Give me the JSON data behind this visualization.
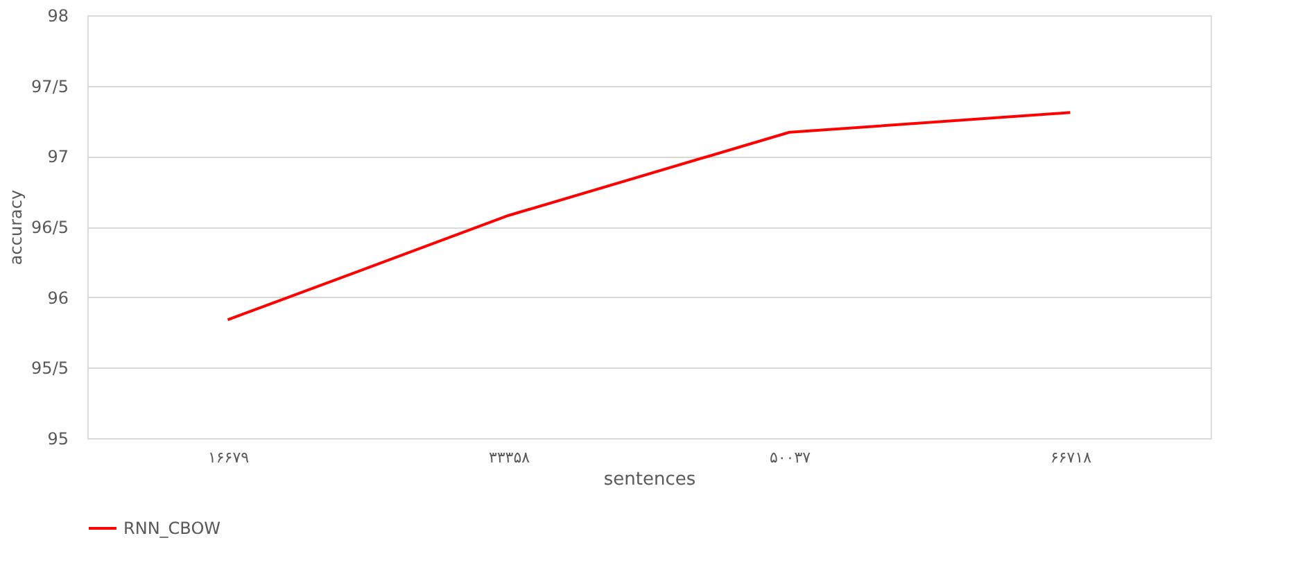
{
  "chart_data": {
    "type": "line",
    "xlabel": "sentences",
    "ylabel": "accuracy",
    "categories": [
      "۱۶۶۷۹",
      "۳۳۳۵۸",
      "۵۰۰۳۷",
      "۶۶۷۱۸"
    ],
    "series": [
      {
        "name": "RNN_CBOW",
        "color": "#ff0000",
        "values": [
          95.84,
          96.58,
          97.17,
          97.31
        ]
      }
    ],
    "ylim": [
      95,
      98
    ],
    "yticks": [
      95,
      {
        "value": 95.5,
        "label": "95/5"
      },
      96,
      {
        "value": 96.5,
        "label": "96/5"
      },
      97,
      {
        "value": 97.5,
        "label": "97/5"
      },
      98
    ],
    "grid": "y",
    "legend": "bottom",
    "marker": "none",
    "line_style": "solid"
  }
}
